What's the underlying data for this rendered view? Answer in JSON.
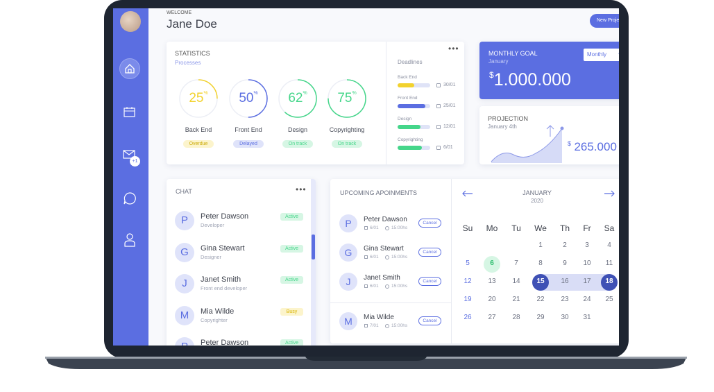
{
  "header": {
    "welcome": "WELCOME",
    "name": "Jane Doe",
    "button": "New Project"
  },
  "sidebar": {
    "badge": "+1"
  },
  "statistics": {
    "title": "STATISTICS",
    "subtitle": "Processes",
    "items": [
      {
        "label": "Back End",
        "value": 25,
        "unit": "%",
        "status": "Overdue",
        "color": "#f2d22e",
        "tint": "#fcf4cc"
      },
      {
        "label": "Front End",
        "value": 50,
        "unit": "%",
        "status": "Delayed",
        "color": "#5b6ee1",
        "tint": "#dfe3fa"
      },
      {
        "label": "Design",
        "value": 62,
        "unit": "%",
        "status": "On track",
        "color": "#45d68a",
        "tint": "#d6f6e4"
      },
      {
        "label": "Copyrighting",
        "value": 75,
        "unit": "%",
        "status": "On track",
        "color": "#45d68a",
        "tint": "#d6f6e4"
      }
    ]
  },
  "deadlines": {
    "title": "Deadlines",
    "items": [
      {
        "label": "Back End",
        "date": "30/01",
        "progress": 50,
        "color": "#f2d22e"
      },
      {
        "label": "Front End",
        "date": "25/01",
        "progress": 85,
        "color": "#5b6ee1"
      },
      {
        "label": "Design",
        "date": "12/01",
        "progress": 70,
        "color": "#45d68a"
      },
      {
        "label": "Copyrighting",
        "date": "6/01",
        "progress": 75,
        "color": "#45d68a"
      }
    ]
  },
  "monthly_goal": {
    "title": "MONTHLY GOAL",
    "period": "January",
    "dropdown": "Monthly",
    "currency": "$",
    "amount": "1.000.000"
  },
  "projection": {
    "title": "PROJECTION",
    "date": "January 4th",
    "currency": "$",
    "amount": "265.000"
  },
  "chat": {
    "title": "CHAT",
    "contacts": [
      {
        "initial": "P",
        "name": "Peter Dawson",
        "role": "Developer",
        "status": "Active",
        "color": "#45d68a",
        "tint": "#d6f6e4"
      },
      {
        "initial": "G",
        "name": "Gina Stewart",
        "role": "Designer",
        "status": "Active",
        "color": "#45d68a",
        "tint": "#d6f6e4"
      },
      {
        "initial": "J",
        "name": "Janet Smith",
        "role": "Front end developer",
        "status": "Active",
        "color": "#45d68a",
        "tint": "#d6f6e4"
      },
      {
        "initial": "M",
        "name": "Mia Wilde",
        "role": "Copyrighter",
        "status": "Busy",
        "color": "#d9b400",
        "tint": "#fcf4cc"
      },
      {
        "initial": "P",
        "name": "Peter Dawson",
        "status": "Active",
        "color": "#45d68a",
        "tint": "#d6f6e4"
      }
    ]
  },
  "appointments": {
    "title": "UPCOMING APOINMENTS",
    "items": [
      {
        "initial": "P",
        "name": "Peter Dawson",
        "date": "6/01",
        "time": "15:00hs",
        "action": "Cancel"
      },
      {
        "initial": "G",
        "name": "Gina Stewart",
        "date": "6/01",
        "time": "15:00hs",
        "action": "Cancel"
      },
      {
        "initial": "J",
        "name": "Janet Smith",
        "date": "6/01",
        "time": "15:00hs",
        "action": "Cancel"
      },
      {
        "initial": "M",
        "name": "Mia Wilde",
        "date": "7/01",
        "time": "15:00hs",
        "action": "Cancel"
      }
    ]
  },
  "calendar": {
    "month": "JANUARY",
    "year": "2020",
    "weekdays": [
      "Su",
      "Mo",
      "Tu",
      "We",
      "Th",
      "Fr",
      "Sa"
    ],
    "weeks": [
      [
        null,
        null,
        null,
        1,
        2,
        3,
        4
      ],
      [
        5,
        6,
        7,
        8,
        9,
        10,
        11
      ],
      [
        12,
        13,
        14,
        15,
        16,
        17,
        18
      ],
      [
        19,
        20,
        21,
        22,
        23,
        24,
        25
      ],
      [
        26,
        27,
        28,
        29,
        30,
        31
      ]
    ],
    "today": 6,
    "selected": [
      15,
      18
    ]
  }
}
